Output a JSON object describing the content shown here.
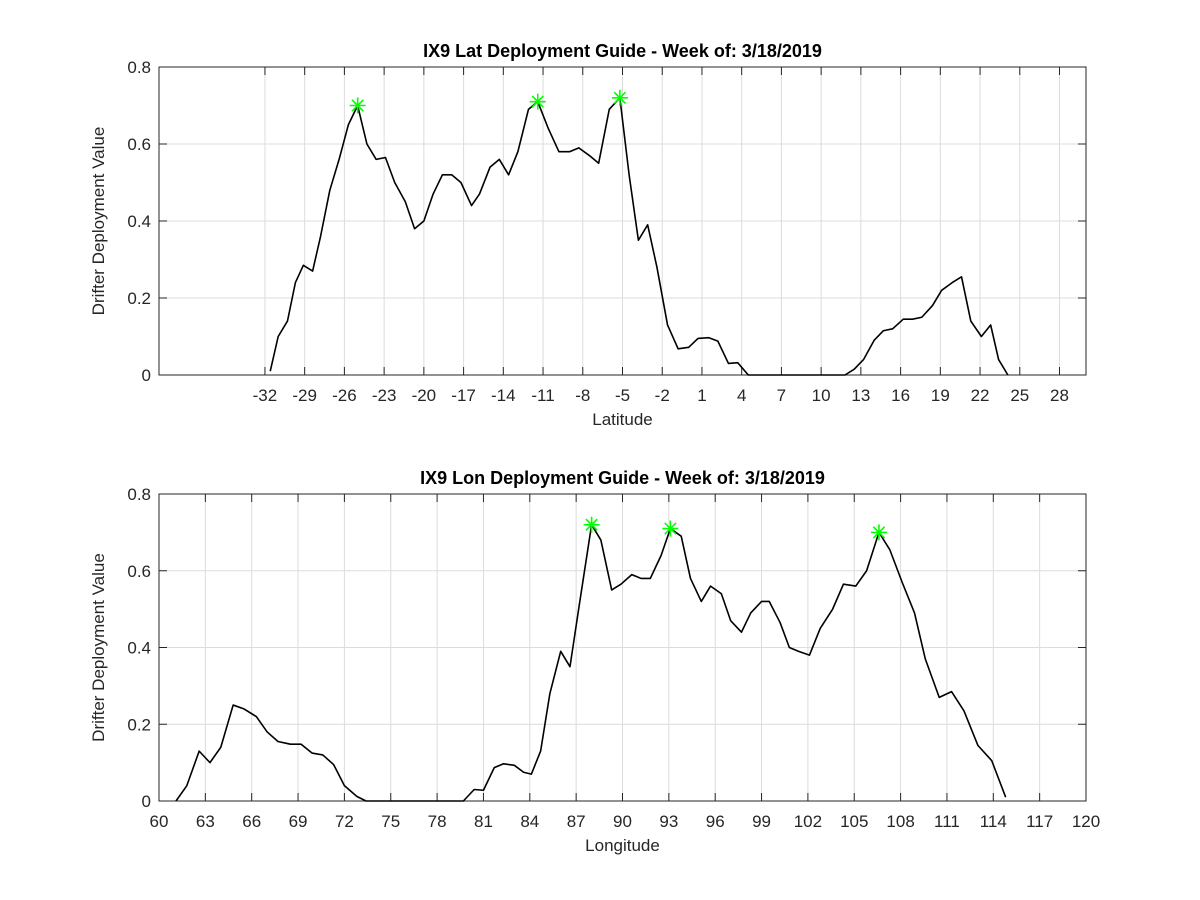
{
  "chart_data": [
    {
      "type": "line",
      "title": "IX9 Lat Deployment Guide - Week of: 3/18/2019",
      "xlabel": "Latitude",
      "ylabel": "Drifter Deployment Value",
      "xlim": [
        -40,
        30
      ],
      "xticks": [
        -32,
        -29,
        -26,
        -23,
        -20,
        -17,
        -14,
        -11,
        -8,
        -5,
        -2,
        1,
        4,
        7,
        10,
        13,
        16,
        19,
        22,
        25,
        28
      ],
      "ylim": [
        0,
        0.8
      ],
      "yticks": [
        0,
        0.2,
        0.4,
        0.6,
        0.8
      ],
      "grid": true,
      "series": [
        {
          "color": "#000000",
          "marker": "none",
          "x": [
            -31.6,
            -31.0,
            -30.3,
            -29.7,
            -29.1,
            -28.4,
            -27.8,
            -27.1,
            -26.4,
            -25.7,
            -25.0,
            -24.3,
            -23.6,
            -22.9,
            -22.2,
            -21.4,
            -20.7,
            -20.0,
            -19.3,
            -18.6,
            -17.9,
            -17.2,
            -16.4,
            -15.8,
            -15.0,
            -14.3,
            -13.6,
            -12.9,
            -12.1,
            -11.4,
            -10.6,
            -9.8,
            -9.0,
            -8.3,
            -7.5,
            -6.8,
            -6.0,
            -5.2,
            -4.5,
            -3.8,
            -3.1,
            -2.4,
            -1.6,
            -0.8,
            0.0,
            0.7,
            1.5,
            2.2,
            3.0,
            3.7,
            4.5,
            9.8,
            11.8,
            12.5,
            13.2,
            14.0,
            14.7,
            15.4,
            16.2,
            16.9,
            17.6,
            18.4,
            19.1,
            19.9,
            20.6,
            21.3,
            22.1,
            22.8,
            23.4,
            24.1
          ],
          "values": [
            0.01,
            0.1,
            0.14,
            0.24,
            0.285,
            0.27,
            0.36,
            0.48,
            0.56,
            0.65,
            0.7,
            0.6,
            0.56,
            0.565,
            0.5,
            0.45,
            0.38,
            0.4,
            0.47,
            0.52,
            0.52,
            0.5,
            0.44,
            0.47,
            0.54,
            0.56,
            0.52,
            0.58,
            0.69,
            0.71,
            0.64,
            0.58,
            0.58,
            0.59,
            0.57,
            0.55,
            0.69,
            0.72,
            0.52,
            0.35,
            0.39,
            0.28,
            0.13,
            0.068,
            0.072,
            0.095,
            0.097,
            0.088,
            0.03,
            0.032,
            0,
            0,
            0,
            0.015,
            0.04,
            0.09,
            0.115,
            0.12,
            0.145,
            0.145,
            0.15,
            0.18,
            0.22,
            0.24,
            0.255,
            0.14,
            0.1,
            0.13,
            0.04,
            0
          ]
        },
        {
          "color": "#00ff00",
          "marker": "star",
          "x": [
            -25.0,
            -11.4,
            -5.2
          ],
          "values": [
            0.7,
            0.71,
            0.72
          ]
        }
      ]
    },
    {
      "type": "line",
      "title": "IX9 Lon Deployment Guide - Week of: 3/18/2019",
      "xlabel": "Longitude",
      "ylabel": "Drifter Deployment Value",
      "xlim": [
        60,
        120
      ],
      "xticks": [
        60,
        63,
        66,
        69,
        72,
        75,
        78,
        81,
        84,
        87,
        90,
        93,
        96,
        99,
        102,
        105,
        108,
        111,
        114,
        117,
        120
      ],
      "ylim": [
        0,
        0.8
      ],
      "yticks": [
        0,
        0.2,
        0.4,
        0.6,
        0.8
      ],
      "grid": true,
      "series": [
        {
          "color": "#000000",
          "marker": "none",
          "x": [
            61.1,
            61.8,
            62.6,
            63.3,
            64.0,
            64.8,
            65.5,
            66.3,
            67.0,
            67.7,
            68.5,
            69.2,
            69.9,
            70.6,
            71.3,
            72.0,
            72.8,
            73.4,
            77.9,
            79.7,
            80.4,
            81.0,
            81.7,
            82.3,
            83.0,
            83.6,
            84.1,
            84.7,
            85.3,
            86.0,
            86.6,
            87.2,
            88.0,
            88.6,
            89.3,
            89.9,
            90.6,
            91.2,
            91.8,
            92.5,
            93.1,
            93.8,
            94.4,
            95.1,
            95.7,
            96.4,
            97.0,
            97.7,
            98.3,
            99.0,
            99.5,
            100.2,
            100.8,
            101.4,
            102.1,
            102.8,
            103.6,
            104.3,
            105.1,
            105.8,
            106.6,
            107.3,
            108.1,
            108.9,
            109.6,
            110.5,
            111.3,
            112.1,
            113.0,
            113.9,
            114.8
          ],
          "values": [
            0,
            0.04,
            0.13,
            0.1,
            0.14,
            0.25,
            0.24,
            0.22,
            0.18,
            0.155,
            0.148,
            0.148,
            0.125,
            0.12,
            0.095,
            0.04,
            0.012,
            0,
            0,
            0,
            0.03,
            0.028,
            0.087,
            0.097,
            0.093,
            0.075,
            0.07,
            0.13,
            0.28,
            0.39,
            0.35,
            0.51,
            0.72,
            0.68,
            0.55,
            0.565,
            0.59,
            0.58,
            0.58,
            0.64,
            0.71,
            0.69,
            0.58,
            0.52,
            0.56,
            0.54,
            0.47,
            0.44,
            0.49,
            0.52,
            0.52,
            0.465,
            0.4,
            0.39,
            0.38,
            0.45,
            0.5,
            0.565,
            0.56,
            0.6,
            0.7,
            0.655,
            0.57,
            0.49,
            0.37,
            0.27,
            0.285,
            0.235,
            0.145,
            0.105,
            0.01
          ]
        },
        {
          "color": "#00ff00",
          "marker": "star",
          "x": [
            88.0,
            93.1,
            106.6
          ],
          "values": [
            0.72,
            0.71,
            0.7
          ]
        }
      ]
    }
  ]
}
